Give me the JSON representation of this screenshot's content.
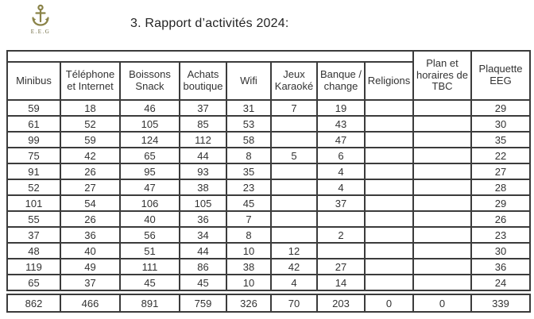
{
  "page": {
    "title": "3. Rapport d’activités 2024:"
  },
  "logo": {
    "icon": "anchor-icon",
    "text": "E.E.G",
    "color": "#8a8348"
  },
  "table": {
    "columns": [
      "Minibus",
      "Téléphone et Internet",
      "Boissons Snack",
      "Achats boutique",
      "Wifi",
      "Jeux Karaoké",
      "Banque / change",
      "Religions",
      "Plan et horaires de TBC",
      "Plaquette EEG"
    ],
    "rows": [
      [
        "59",
        "18",
        "46",
        "37",
        "31",
        "7",
        "19",
        "",
        "",
        "29"
      ],
      [
        "61",
        "52",
        "105",
        "85",
        "53",
        "",
        "43",
        "",
        "",
        "30"
      ],
      [
        "99",
        "59",
        "124",
        "112",
        "58",
        "",
        "47",
        "",
        "",
        "35"
      ],
      [
        "75",
        "42",
        "65",
        "44",
        "8",
        "5",
        "6",
        "",
        "",
        "22"
      ],
      [
        "91",
        "26",
        "95",
        "93",
        "35",
        "",
        "4",
        "",
        "",
        "27"
      ],
      [
        "52",
        "27",
        "47",
        "38",
        "23",
        "",
        "4",
        "",
        "",
        "28"
      ],
      [
        "101",
        "54",
        "106",
        "105",
        "45",
        "",
        "37",
        "",
        "",
        "29"
      ],
      [
        "55",
        "26",
        "40",
        "36",
        "7",
        "",
        "",
        "",
        "",
        "26"
      ],
      [
        "37",
        "36",
        "56",
        "34",
        "8",
        "",
        "2",
        "",
        "",
        "23"
      ],
      [
        "48",
        "40",
        "51",
        "44",
        "10",
        "12",
        "",
        "",
        "",
        "30"
      ],
      [
        "119",
        "49",
        "111",
        "86",
        "38",
        "42",
        "27",
        "",
        "",
        "36"
      ],
      [
        "65",
        "37",
        "45",
        "45",
        "10",
        "4",
        "14",
        "",
        "",
        "24"
      ]
    ],
    "totals": [
      "862",
      "466",
      "891",
      "759",
      "326",
      "70",
      "203",
      "0",
      "0",
      "339"
    ]
  }
}
